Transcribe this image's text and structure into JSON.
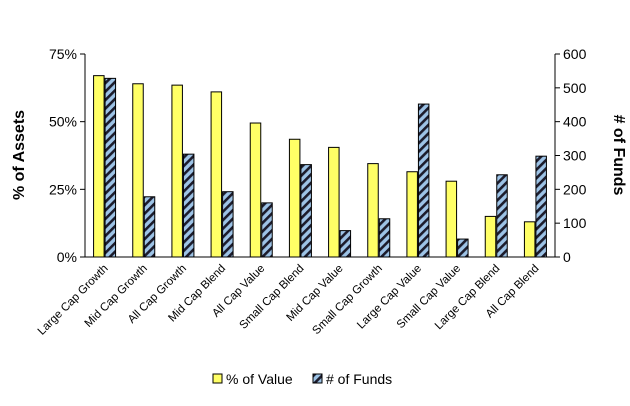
{
  "chart_data": {
    "type": "bar",
    "title": "",
    "categories": [
      "Large Cap Growth",
      "Mid Cap Growth",
      "All Cap Growth",
      "Mid Cap Blend",
      "All Cap Value",
      "Small Cap Blend",
      "Mid Cap Value",
      "Small Cap Growth",
      "Large Cap Value",
      "Small Cap Value",
      "Large Cap Blend",
      "All Cap Blend"
    ],
    "series": [
      {
        "name": "% of Value",
        "axis": "left",
        "color": "#ffff66",
        "pattern": "solid",
        "values": [
          67,
          64,
          63.5,
          61,
          49.5,
          43.5,
          40.5,
          34.5,
          31.5,
          28,
          15,
          13
        ]
      },
      {
        "name": "# of Funds",
        "axis": "right",
        "color": "#9dc3e6",
        "pattern": "diagonal-hatch-dark",
        "values": [
          528,
          178,
          304,
          193,
          160,
          273,
          78,
          113,
          452,
          53,
          243,
          298
        ]
      }
    ],
    "ylabel": "% of Assets",
    "ylabel_right": "# of Funds",
    "ylim": [
      0,
      75
    ],
    "ylim_right": [
      0,
      600
    ],
    "yticks_left": [
      "0%",
      "25%",
      "50%",
      "75%"
    ],
    "yticks_right": [
      "0",
      "100",
      "200",
      "300",
      "400",
      "500",
      "600"
    ],
    "grid": false,
    "legend_position": "bottom"
  }
}
